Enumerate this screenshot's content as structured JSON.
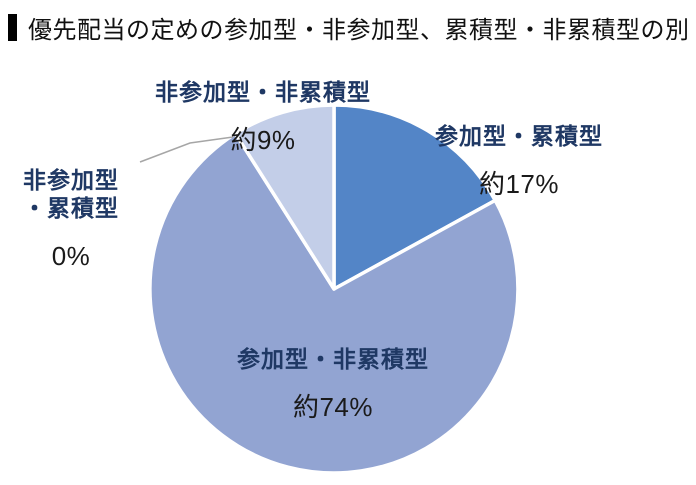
{
  "title": {
    "text": "優先配当の定めの参加型・非参加型、累積型・非累積型の別"
  },
  "chart_data": {
    "type": "pie",
    "title": "優先配当の定めの参加型・非参加型、累積型・非累積型の別",
    "start_angle_deg": 0,
    "direction": "clockwise",
    "slices": [
      {
        "label": "参加型・累積型",
        "value_pct": 17,
        "value_text": "約17%",
        "color": "#5385C7"
      },
      {
        "label": "参加型・非累積型",
        "value_pct": 74,
        "value_text": "約74%",
        "color": "#92A4D2"
      },
      {
        "label": "非参加型・累積型",
        "value_pct": 0,
        "value_text": "0%",
        "color": null
      },
      {
        "label": "非参加型・非累積型",
        "value_pct": 9,
        "value_text": "約9%",
        "color": "#C3CEE8"
      }
    ],
    "label_color": "#1F3864",
    "value_text_color": "#1a1a1a",
    "slice_gap_color": "#FFFFFF",
    "leader_line_color": "#A6A6A6",
    "legend": "none",
    "labels_outside_except": "参加型・非累積型"
  },
  "callouts": {
    "nonpart_cum_lines": [
      "非参加型",
      "・累積型"
    ]
  }
}
